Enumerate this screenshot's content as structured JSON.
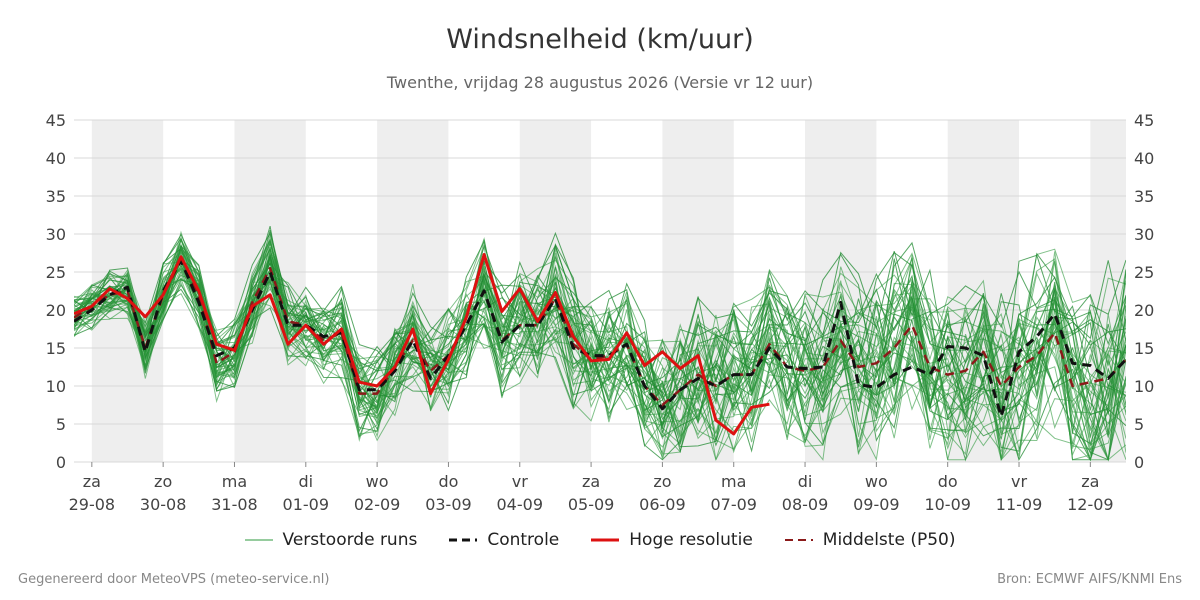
{
  "chart_data": {
    "type": "line",
    "title": "Windsnelheid (km/uur)",
    "subtitle": "Twenthe, vrijdag 28 augustus 2026 (Versie vr 12 uur)",
    "ylim": [
      0,
      45
    ],
    "yticks": [
      0,
      5,
      10,
      15,
      20,
      25,
      30,
      35,
      40,
      45
    ],
    "x_ticks": [
      {
        "day": "za",
        "date": "29-08"
      },
      {
        "day": "zo",
        "date": "30-08"
      },
      {
        "day": "ma",
        "date": "31-08"
      },
      {
        "day": "di",
        "date": "01-09"
      },
      {
        "day": "wo",
        "date": "02-09"
      },
      {
        "day": "do",
        "date": "03-09"
      },
      {
        "day": "vr",
        "date": "04-09"
      },
      {
        "day": "za",
        "date": "05-09"
      },
      {
        "day": "zo",
        "date": "06-09"
      },
      {
        "day": "ma",
        "date": "07-09"
      },
      {
        "day": "di",
        "date": "08-09"
      },
      {
        "day": "wo",
        "date": "09-09"
      },
      {
        "day": "do",
        "date": "10-09"
      },
      {
        "day": "vr",
        "date": "11-09"
      },
      {
        "day": "za",
        "date": "12-09"
      }
    ],
    "x_range_days": [
      -0.25,
      14.5
    ],
    "weekend_shading": [
      [
        0,
        1
      ],
      [
        2,
        3
      ],
      [
        4,
        5
      ],
      [
        6,
        7
      ],
      [
        8,
        9
      ],
      [
        10,
        11
      ],
      [
        12,
        13
      ],
      [
        14,
        14.5
      ]
    ],
    "grid": true,
    "series": [
      {
        "name": "Hoge resolutie",
        "color": "#dd1111",
        "style": "solid",
        "x": [
          -0.25,
          0,
          0.25,
          0.5,
          0.75,
          1,
          1.25,
          1.5,
          1.75,
          2,
          2.25,
          2.5,
          2.75,
          3,
          3.25,
          3.5,
          3.75,
          4,
          4.25,
          4.5,
          4.75,
          5,
          5.25,
          5.5,
          5.75,
          6,
          6.25,
          6.5,
          6.75,
          7,
          7.25,
          7.5,
          7.75,
          8,
          8.25,
          8.5,
          8.75,
          9,
          9.25,
          9.5
        ],
        "y": [
          19.5,
          20.5,
          22.8,
          21.5,
          19.1,
          22,
          27,
          22.5,
          15.5,
          14.7,
          20.5,
          22,
          15.5,
          18,
          15.5,
          17.5,
          10.5,
          10,
          12.5,
          17.5,
          9,
          13.5,
          19,
          27.3,
          19.8,
          22.8,
          18.5,
          22.3,
          16.5,
          13.3,
          13.5,
          17,
          12.7,
          14.5,
          12.3,
          14,
          5.5,
          3.7,
          7.2,
          7.6
        ]
      },
      {
        "name": "Controle",
        "color": "#111111",
        "style": "dashed",
        "x": [
          -0.25,
          0,
          0.25,
          0.5,
          0.75,
          1,
          1.25,
          1.5,
          1.75,
          2,
          2.25,
          2.5,
          2.75,
          3,
          3.25,
          3.5,
          3.75,
          4,
          4.25,
          4.5,
          4.75,
          5,
          5.25,
          5.5,
          5.75,
          6,
          6.25,
          6.5,
          6.75,
          7,
          7.25,
          7.5,
          7.75,
          8,
          8.25,
          8.5,
          8.75,
          9,
          9.25,
          9.5,
          9.75,
          10,
          10.25,
          10.5,
          10.75,
          11,
          11.25,
          11.5,
          11.75,
          12,
          12.25,
          12.5,
          12.75,
          13,
          13.25,
          13.5,
          13.75,
          14,
          14.25,
          14.5
        ],
        "y": [
          18.5,
          20,
          22,
          23,
          14.5,
          22.5,
          26.5,
          21,
          14,
          15,
          20,
          25,
          18,
          18,
          16.5,
          17,
          9.5,
          9.5,
          12,
          16,
          11,
          14,
          18,
          22.5,
          15.8,
          18,
          18,
          21.5,
          15,
          14,
          14,
          15.5,
          10,
          7,
          9.5,
          11,
          10,
          11.5,
          11.5,
          15,
          12.5,
          12.3,
          12.5,
          21,
          10.2,
          9.8,
          11.5,
          12.5,
          11.5,
          15.2,
          15,
          14,
          6,
          14.5,
          16.5,
          19.5,
          13,
          12.7,
          11,
          13.5
        ]
      },
      {
        "name": "Middelste (P50)",
        "color": "#8b1a1a",
        "style": "dashed",
        "x": [
          -0.25,
          0,
          0.25,
          0.5,
          0.75,
          1,
          1.25,
          1.5,
          1.75,
          2,
          2.25,
          2.5,
          2.75,
          3,
          3.25,
          3.5,
          3.75,
          4,
          4.25,
          4.5,
          4.75,
          5,
          5.25,
          5.5,
          5.75,
          6,
          6.25,
          6.5,
          6.75,
          7,
          7.25,
          7.5,
          7.75,
          8,
          8.25,
          8.5,
          8.75,
          9,
          9.25,
          9.5,
          9.75,
          10,
          10.25,
          10.5,
          10.75,
          11,
          11.25,
          11.5,
          11.75,
          12,
          12.25,
          12.5,
          12.75,
          13,
          13.25,
          13.5,
          13.75,
          14,
          14.25,
          14.5
        ],
        "y": [
          19,
          20.5,
          22,
          22.5,
          15,
          22,
          26.5,
          22,
          13,
          14.5,
          21,
          25.5,
          18.5,
          18,
          16,
          17,
          9,
          9,
          12.5,
          16,
          12,
          14,
          18,
          22.5,
          16,
          18,
          18,
          21.5,
          15.5,
          13.5,
          14,
          15.5,
          10,
          7.5,
          9.5,
          11.5,
          10,
          11.5,
          11.5,
          15.5,
          12.5,
          12,
          12.5,
          16,
          12.5,
          13,
          15,
          18,
          12.5,
          11.5,
          12,
          14.5,
          10,
          12.5,
          14,
          17,
          10,
          10.5,
          11,
          13.5
        ]
      }
    ],
    "ensemble": {
      "name": "Verstoorde runs",
      "color": "#2e9a3e",
      "member_count": 50,
      "median_x": [
        -0.25,
        0,
        0.25,
        0.5,
        0.75,
        1,
        1.25,
        1.5,
        1.75,
        2,
        2.25,
        2.5,
        2.75,
        3,
        3.25,
        3.5,
        3.75,
        4,
        4.25,
        4.5,
        4.75,
        5,
        5.25,
        5.5,
        5.75,
        6,
        6.25,
        6.5,
        6.75,
        7,
        7.25,
        7.5,
        7.75,
        8,
        8.25,
        8.5,
        8.75,
        9,
        9.25,
        9.5,
        9.75,
        10,
        10.25,
        10.5,
        10.75,
        11,
        11.25,
        11.5,
        11.75,
        12,
        12.25,
        12.5,
        12.75,
        13,
        13.25,
        13.5,
        13.75,
        14,
        14.25,
        14.5
      ],
      "median_y": [
        19,
        20.5,
        22,
        22.5,
        15,
        22,
        26.5,
        22,
        13,
        14.5,
        21,
        25.5,
        18.5,
        18,
        16,
        17,
        9,
        9,
        12.5,
        16,
        12,
        14,
        18,
        22.5,
        16,
        18,
        18,
        21.5,
        15.5,
        13.5,
        14,
        15.5,
        10,
        7.5,
        9.5,
        11.5,
        10,
        11.5,
        11.5,
        15.5,
        12.5,
        12,
        12.5,
        16,
        12.5,
        13,
        15,
        18,
        12.5,
        11.5,
        12,
        14.5,
        10,
        12.5,
        14,
        17,
        10,
        10.5,
        11,
        13.5
      ]
    },
    "legend_position": "bottom"
  },
  "legend": [
    {
      "label": "Verstoorde runs",
      "style": "thin",
      "color": "#2e9a3e"
    },
    {
      "label": "Controle",
      "style": "dashed",
      "color": "#111111"
    },
    {
      "label": "Hoge resolutie",
      "style": "solid",
      "color": "#dd1111"
    },
    {
      "label": "Middelste (P50)",
      "style": "dashed",
      "color": "#8b1a1a"
    }
  ],
  "footer": {
    "left": "Gegenereerd door MeteoVPS (meteo-service.nl)",
    "right": "Bron: ECMWF AIFS/KNMI Ens"
  }
}
